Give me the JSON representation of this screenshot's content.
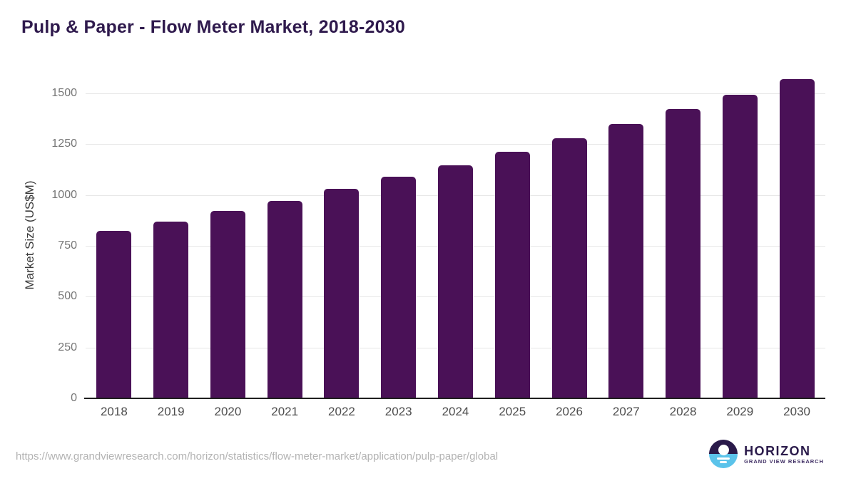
{
  "title": "Pulp & Paper - Flow Meter Market, 2018-2030",
  "chart_data": {
    "type": "bar",
    "title": "Pulp & Paper - Flow Meter Market, 2018-2030",
    "categories": [
      "2018",
      "2019",
      "2020",
      "2021",
      "2022",
      "2023",
      "2024",
      "2025",
      "2026",
      "2027",
      "2028",
      "2029",
      "2030"
    ],
    "values": [
      825,
      870,
      920,
      970,
      1030,
      1090,
      1145,
      1212,
      1280,
      1350,
      1423,
      1494,
      1570
    ],
    "xlabel": "",
    "ylabel": "Market Size (US$M)",
    "ylim": [
      0,
      1600
    ],
    "y_ticks": [
      0,
      250,
      500,
      750,
      1000,
      1250,
      1500
    ],
    "grid": "horizontal",
    "legend": "none",
    "bar_color": "#4A1157"
  },
  "footer": {
    "source_url": "https://www.grandviewresearch.com/horizon/statistics/flow-meter-market/application/pulp-paper/global",
    "logo": {
      "name": "HORIZON",
      "subtitle": "GRAND VIEW RESEARCH"
    }
  },
  "colors": {
    "title_text": "#2F1A4D",
    "bar": "#4A1157",
    "x_tick_label": "#4D4D4D",
    "y_tick_label": "#757575",
    "gridline": "#E7E7E7",
    "axis_line": "#1F1F1F",
    "source_url_text": "#B3B3B3",
    "logo_dark_purple": "#2A1A4A",
    "logo_light_blue": "#5BC3EA"
  }
}
